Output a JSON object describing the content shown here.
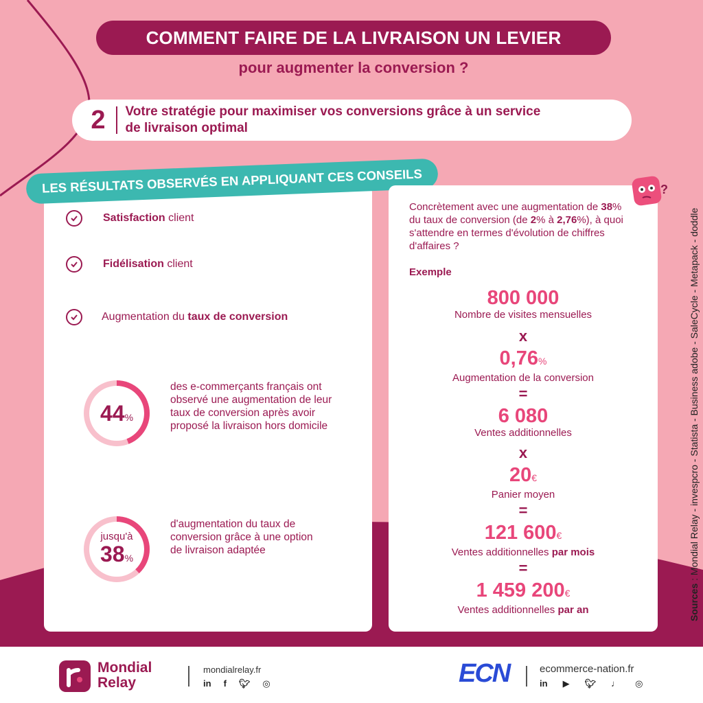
{
  "header": {
    "title": "COMMENT FAIRE DE LA LIVRAISON UN LEVIER",
    "subtitle": "pour augmenter la conversion ?"
  },
  "strategy": {
    "number": "2",
    "text_part1": "Votre stratégie pour maximiser vos conversions grâce à un ",
    "text_bold": "service",
    "text_part2_bold": "de livraison optimal"
  },
  "results_banner": "LES RÉSULTATS OBSERVÉS EN APPLIQUANT CES CONSEILS",
  "checklist": [
    {
      "bold": "Satisfaction",
      "rest": " client"
    },
    {
      "bold": "Fidélisation",
      "rest": " client"
    },
    {
      "prefix": "Augmentation du ",
      "bold": "taux de conversion"
    }
  ],
  "stats": [
    {
      "value": "44",
      "unit": "%",
      "fraction": 0.44,
      "text": "des e-commerçants français ont observé une augmentation de leur taux de conversion après avoir proposé la livraison hors domicile"
    },
    {
      "prefix": "jusqu'à",
      "value": "38",
      "unit": "%",
      "fraction": 0.38,
      "text": "d'augmentation du taux de conversion grâce à une option de livraison adaptée"
    }
  ],
  "example": {
    "intro_1": "Concrètement avec une augmentation de ",
    "intro_b1": "38",
    "intro_2": "% du taux de conversion (de ",
    "intro_b2": "2",
    "intro_3": "% à ",
    "intro_b3": "2,76",
    "intro_4": "%), à quoi s'attendre en termes d'évolution de chiffres d'affaires ?",
    "label": "Exemple",
    "visits": {
      "value": "800 000",
      "label": "Nombre de visites mensuelles"
    },
    "op_times": "x",
    "conversion": {
      "value": "0,76",
      "unit": "%",
      "label": "Augmentation de la conversion"
    },
    "op_equals": "=",
    "sales": {
      "value": "6 080",
      "label": "Ventes additionnelles"
    },
    "basket": {
      "value": "20",
      "unit": "€",
      "label": "Panier moyen"
    },
    "monthly": {
      "value": "121 600",
      "unit": "€",
      "label": "Ventes additionnelles ",
      "label_bold": "par mois"
    },
    "yearly": {
      "value": "1 459 200",
      "unit": "€",
      "label": "Ventes additionnelles ",
      "label_bold": "par an"
    }
  },
  "sources": {
    "label": "Sources",
    "text": " : Mondial Relay  -  invespcro  -  Statista  -  Business adobe  -  SaleCycle  -  Metapack  -  doddle"
  },
  "footer": {
    "brand_left": "Mondial",
    "brand_left_2": "Relay",
    "url_left": "mondialrelay.fr",
    "brand_right": "ECN",
    "url_right": "ecommerce-nation.fr",
    "social_left": [
      "in",
      "f",
      "tw",
      "ig"
    ],
    "social_right": [
      "in",
      "yt",
      "tw",
      "mic",
      "ig"
    ]
  },
  "colors": {
    "background": "#f5a8b4",
    "primary": "#9b1a52",
    "accent": "#e8467a",
    "teal": "#3cb8b0"
  }
}
